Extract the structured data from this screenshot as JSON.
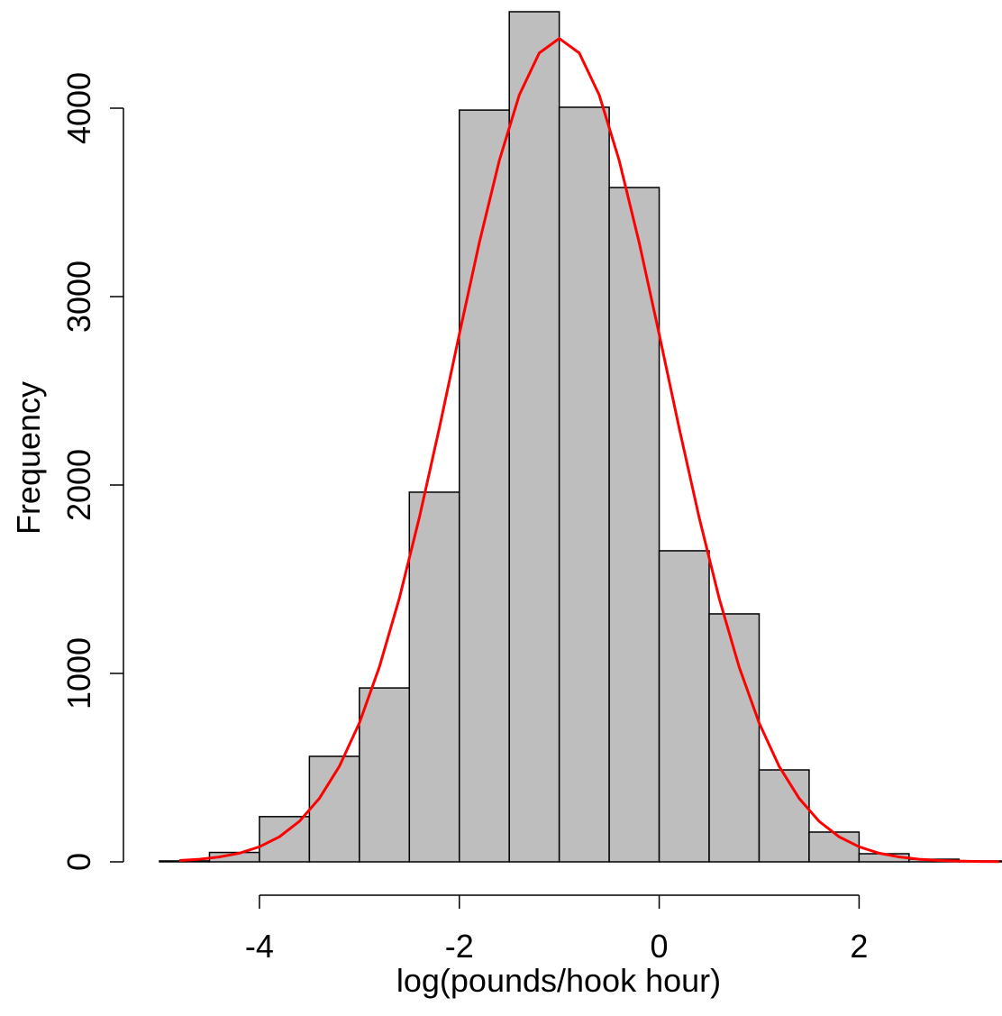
{
  "chart_data": {
    "type": "histogram",
    "xlabel": "log(pounds/hook hour)",
    "ylabel": "Frequency",
    "bins": [
      -5,
      -4.5,
      -4,
      -3.5,
      -3,
      -2.5,
      -2,
      -1.5,
      -1,
      -0.5,
      0,
      0.5,
      1,
      1.5,
      2,
      2.5,
      3,
      3.5
    ],
    "values": [
      5,
      50,
      240,
      560,
      923,
      1962,
      3990,
      4512,
      4005,
      3579,
      1651,
      1316,
      488,
      158,
      43,
      14,
      5
    ],
    "color": "#bebebe",
    "curve": {
      "color": "#ff0000",
      "x": [
        -4.8,
        -4.6,
        -4.4,
        -4.2,
        -4.0,
        -3.8,
        -3.6,
        -3.4,
        -3.2,
        -3.0,
        -2.8,
        -2.6,
        -2.4,
        -2.2,
        -2.0,
        -1.8,
        -1.6,
        -1.4,
        -1.2,
        -1.0,
        -0.8,
        -0.6,
        -0.4,
        -0.2,
        0.0,
        0.2,
        0.4,
        0.6,
        0.8,
        1.0,
        1.2,
        1.4,
        1.6,
        1.8,
        2.0,
        2.2,
        2.4,
        2.6,
        2.8,
        3.0,
        3.2,
        3.4
      ],
      "values": [
        7,
        14,
        26,
        46,
        80,
        133,
        215,
        337,
        507,
        737,
        1034,
        1399,
        1827,
        2302,
        2800,
        3286,
        3722,
        4070,
        4293,
        4370,
        4293,
        4070,
        3722,
        3286,
        2800,
        2302,
        1827,
        1399,
        1034,
        737,
        507,
        337,
        215,
        133,
        80,
        46,
        26,
        14,
        7,
        4,
        2,
        1
      ]
    },
    "xlim": [
      -5,
      3.43
    ],
    "ylim": [
      0,
      4512
    ],
    "xticks": [
      -4,
      -2,
      0,
      2
    ],
    "yticks": [
      0,
      1000,
      2000,
      3000,
      4000
    ]
  }
}
